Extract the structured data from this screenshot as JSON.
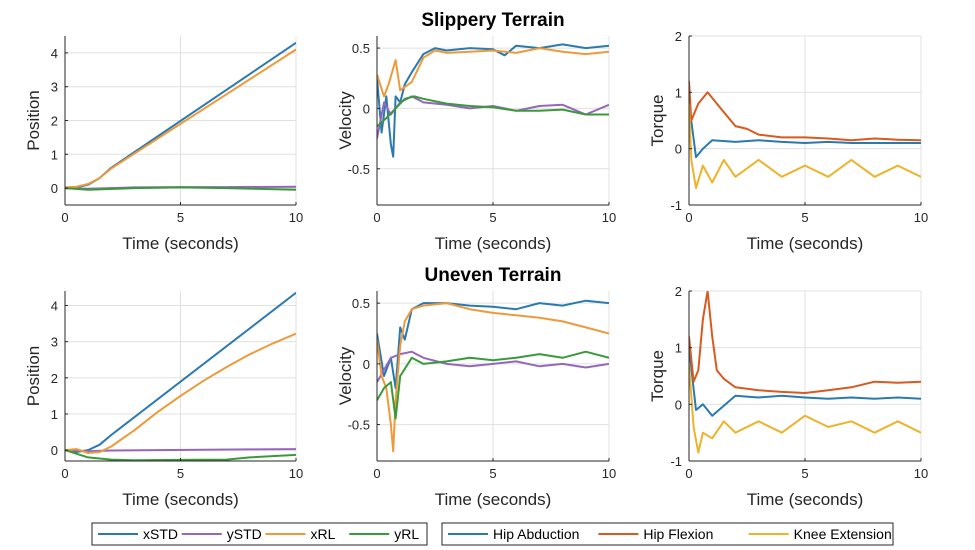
{
  "colors": {
    "blue": "#2A7AB0",
    "purple": "#9467BD",
    "orange": "#EE9A3A",
    "green": "#3A9A3A",
    "red": "#D85A1E",
    "gold": "#EDB32A",
    "axis": "#262626",
    "grid": "#E0E0E0"
  },
  "row_titles": [
    "Slippery Terrain",
    "Uneven Terrain"
  ],
  "legends": [
    {
      "entries": [
        {
          "label": "xSTD",
          "color": "#2A7AB0"
        },
        {
          "label": "ySTD",
          "color": "#9467BD"
        },
        {
          "label": "xRL",
          "color": "#EE9A3A"
        },
        {
          "label": "yRL",
          "color": "#3A9A3A"
        }
      ]
    },
    {
      "entries": [
        {
          "label": "Hip Abduction",
          "color": "#2A7AB0"
        },
        {
          "label": "Hip Flexion",
          "color": "#D85A1E"
        },
        {
          "label": "Knee Extension",
          "color": "#EDB32A"
        }
      ]
    }
  ],
  "chart_data": [
    {
      "type": "line",
      "xlabel": "Time (seconds)",
      "ylabel": "Position",
      "xlim": [
        0,
        10
      ],
      "ylim": [
        -0.5,
        4.5
      ],
      "xticks": [
        0,
        5,
        10
      ],
      "xtick_labels": [
        "0",
        "5",
        "10"
      ],
      "yticks": [
        0,
        1,
        2,
        3,
        4
      ],
      "ytick_labels": [
        "0",
        "1",
        "2",
        "3",
        "4"
      ],
      "grid": true,
      "series": [
        {
          "name": "xSTD",
          "color": "#2A7AB0",
          "x": [
            0,
            0.5,
            1,
            1.5,
            2,
            10
          ],
          "y": [
            0,
            0.02,
            0.1,
            0.3,
            0.6,
            4.3
          ]
        },
        {
          "name": "ySTD",
          "color": "#9467BD",
          "x": [
            0,
            1,
            3,
            5,
            7,
            10
          ],
          "y": [
            0,
            -0.02,
            0.02,
            0.03,
            0.03,
            0.04
          ]
        },
        {
          "name": "xRL",
          "color": "#EE9A3A",
          "x": [
            0,
            0.5,
            1,
            1.5,
            2,
            10
          ],
          "y": [
            0.02,
            0.04,
            0.12,
            0.3,
            0.58,
            4.1
          ]
        },
        {
          "name": "yRL",
          "color": "#3A9A3A",
          "x": [
            0,
            1,
            3,
            5,
            7,
            10
          ],
          "y": [
            0,
            -0.05,
            0,
            0.02,
            0,
            -0.05
          ]
        }
      ]
    },
    {
      "type": "line",
      "xlabel": "Time (seconds)",
      "ylabel": "Velocity",
      "xlim": [
        0,
        10
      ],
      "ylim": [
        -0.8,
        0.6
      ],
      "xticks": [
        0,
        5,
        10
      ],
      "xtick_labels": [
        "0",
        "5",
        "10"
      ],
      "yticks": [
        -0.5,
        0,
        0.5
      ],
      "ytick_labels": [
        "-0.5",
        "0",
        "0.5"
      ],
      "grid": true,
      "series": [
        {
          "name": "xSTD",
          "color": "#2A7AB0",
          "x": [
            0,
            0.2,
            0.4,
            0.6,
            0.7,
            0.8,
            1,
            1.2,
            1.5,
            2,
            2.5,
            3,
            4,
            5,
            5.5,
            6,
            7,
            8,
            9,
            10
          ],
          "y": [
            0.25,
            -0.2,
            0.1,
            -0.3,
            -0.4,
            0.1,
            0.05,
            0.2,
            0.3,
            0.45,
            0.5,
            0.48,
            0.5,
            0.49,
            0.44,
            0.52,
            0.5,
            0.53,
            0.5,
            0.52
          ]
        },
        {
          "name": "ySTD",
          "color": "#9467BD",
          "x": [
            0,
            0.3,
            0.6,
            1,
            1.5,
            2,
            3,
            4,
            5,
            6,
            7,
            8,
            9,
            10
          ],
          "y": [
            -0.25,
            0.05,
            -0.05,
            0.05,
            0.1,
            0.05,
            0.03,
            0,
            0.02,
            -0.02,
            0.02,
            0.03,
            -0.05,
            0.03
          ]
        },
        {
          "name": "xRL",
          "color": "#EE9A3A",
          "x": [
            0,
            0.3,
            0.5,
            0.8,
            1,
            1.5,
            2,
            2.5,
            3,
            4,
            5,
            6,
            7,
            8,
            9,
            10
          ],
          "y": [
            0.28,
            0.1,
            0.2,
            0.4,
            0.15,
            0.22,
            0.42,
            0.48,
            0.46,
            0.47,
            0.48,
            0.46,
            0.5,
            0.47,
            0.45,
            0.47
          ]
        },
        {
          "name": "yRL",
          "color": "#3A9A3A",
          "x": [
            0,
            0.4,
            0.8,
            1.2,
            1.6,
            2,
            3,
            4,
            5,
            6,
            7,
            8,
            9,
            10
          ],
          "y": [
            -0.15,
            -0.08,
            0,
            0.08,
            0.1,
            0.08,
            0.04,
            0.02,
            0.01,
            -0.02,
            -0.02,
            -0.01,
            -0.05,
            -0.05
          ]
        }
      ]
    },
    {
      "type": "line",
      "xlabel": "Time (seconds)",
      "ylabel": "Torque",
      "xlim": [
        0,
        10
      ],
      "ylim": [
        -1,
        2
      ],
      "xticks": [
        0,
        5,
        10
      ],
      "xtick_labels": [
        "0",
        "5",
        "10"
      ],
      "yticks": [
        -1,
        0,
        1,
        2
      ],
      "ytick_labels": [
        "-1",
        "0",
        "1",
        "2"
      ],
      "grid": true,
      "series": [
        {
          "name": "Hip Abduction",
          "color": "#2A7AB0",
          "x": [
            0,
            0.3,
            0.6,
            1,
            2,
            3,
            4,
            5,
            6,
            7,
            8,
            9,
            10
          ],
          "y": [
            0.8,
            -0.15,
            0,
            0.15,
            0.12,
            0.15,
            0.12,
            0.1,
            0.12,
            0.1,
            0.1,
            0.1,
            0.1
          ]
        },
        {
          "name": "Hip Flexion",
          "color": "#D85A1E",
          "x": [
            0,
            0.1,
            0.4,
            0.8,
            1.2,
            1.6,
            2,
            2.5,
            3,
            4,
            5,
            6,
            7,
            8,
            9,
            10
          ],
          "y": [
            1.2,
            0.5,
            0.8,
            1.0,
            0.8,
            0.6,
            0.4,
            0.35,
            0.25,
            0.2,
            0.2,
            0.18,
            0.15,
            0.18,
            0.16,
            0.15
          ]
        },
        {
          "name": "Knee Extension",
          "color": "#EDB32A",
          "x": [
            0,
            0.1,
            0.3,
            0.6,
            1,
            1.5,
            2,
            3,
            4,
            5,
            6,
            7,
            8,
            9,
            10
          ],
          "y": [
            0.8,
            -0.2,
            -0.7,
            -0.3,
            -0.6,
            -0.2,
            -0.5,
            -0.2,
            -0.5,
            -0.3,
            -0.5,
            -0.2,
            -0.5,
            -0.3,
            -0.5
          ]
        }
      ]
    },
    {
      "type": "line",
      "xlabel": "Time (seconds)",
      "ylabel": "Position",
      "xlim": [
        0,
        10
      ],
      "ylim": [
        -0.3,
        4.4
      ],
      "xticks": [
        0,
        5,
        10
      ],
      "xtick_labels": [
        "0",
        "5",
        "10"
      ],
      "yticks": [
        0,
        1,
        2,
        3,
        4
      ],
      "ytick_labels": [
        "0",
        "1",
        "2",
        "3",
        "4"
      ],
      "grid": true,
      "series": [
        {
          "name": "xSTD",
          "color": "#2A7AB0",
          "x": [
            0,
            0.5,
            1,
            1.5,
            2,
            10
          ],
          "y": [
            0,
            -0.05,
            0,
            0.15,
            0.42,
            4.35
          ]
        },
        {
          "name": "ySTD",
          "color": "#9467BD",
          "x": [
            0,
            1,
            2,
            4,
            6,
            8,
            10
          ],
          "y": [
            0,
            -0.03,
            -0.01,
            0,
            0.01,
            0.02,
            0.03
          ]
        },
        {
          "name": "xRL",
          "color": "#EE9A3A",
          "x": [
            0,
            0.5,
            1,
            1.5,
            2,
            3,
            4,
            5,
            6,
            7,
            8,
            9,
            10
          ],
          "y": [
            0,
            0.03,
            -0.08,
            -0.05,
            0.1,
            0.55,
            1.05,
            1.5,
            1.92,
            2.3,
            2.65,
            2.95,
            3.22
          ]
        },
        {
          "name": "yRL",
          "color": "#3A9A3A",
          "x": [
            0,
            1,
            2,
            3,
            5,
            7,
            8,
            10
          ],
          "y": [
            0,
            -0.2,
            -0.26,
            -0.28,
            -0.27,
            -0.26,
            -0.2,
            -0.13
          ]
        }
      ]
    },
    {
      "type": "line",
      "xlabel": "Time (seconds)",
      "ylabel": "Velocity",
      "xlim": [
        0,
        10
      ],
      "ylim": [
        -0.8,
        0.6
      ],
      "xticks": [
        0,
        5,
        10
      ],
      "xtick_labels": [
        "0",
        "5",
        "10"
      ],
      "yticks": [
        -0.5,
        0,
        0.5
      ],
      "ytick_labels": [
        "-0.5",
        "0",
        "0.5"
      ],
      "grid": true,
      "series": [
        {
          "name": "xSTD",
          "color": "#2A7AB0",
          "x": [
            0,
            0.3,
            0.6,
            0.8,
            1,
            1.2,
            1.5,
            2,
            3,
            4,
            5,
            6,
            7,
            8,
            9,
            10
          ],
          "y": [
            0.25,
            -0.1,
            0.05,
            -0.2,
            0.3,
            0.2,
            0.45,
            0.5,
            0.5,
            0.48,
            0.47,
            0.45,
            0.5,
            0.48,
            0.52,
            0.5
          ]
        },
        {
          "name": "ySTD",
          "color": "#9467BD",
          "x": [
            0,
            0.3,
            0.6,
            1,
            1.5,
            2,
            3,
            4,
            5,
            6,
            7,
            8,
            9,
            10
          ],
          "y": [
            -0.15,
            -0.05,
            0.05,
            0.08,
            0.1,
            0.05,
            0,
            -0.02,
            0,
            0.02,
            -0.02,
            0,
            -0.03,
            0
          ]
        },
        {
          "name": "xRL",
          "color": "#EE9A3A",
          "x": [
            0,
            0.2,
            0.4,
            0.6,
            0.7,
            0.8,
            1,
            1.2,
            1.5,
            2,
            3,
            4,
            5,
            6,
            7,
            8,
            9,
            10
          ],
          "y": [
            0.2,
            -0.1,
            -0.2,
            -0.5,
            -0.72,
            -0.3,
            0.15,
            0.35,
            0.45,
            0.48,
            0.5,
            0.45,
            0.42,
            0.4,
            0.38,
            0.35,
            0.3,
            0.25
          ]
        },
        {
          "name": "yRL",
          "color": "#3A9A3A",
          "x": [
            0,
            0.3,
            0.6,
            0.8,
            1,
            1.5,
            2,
            3,
            4,
            5,
            6,
            7,
            8,
            9,
            10
          ],
          "y": [
            -0.3,
            -0.2,
            -0.15,
            -0.45,
            -0.1,
            0.05,
            0,
            0.02,
            0.05,
            0.03,
            0.05,
            0.08,
            0.05,
            0.1,
            0.05
          ]
        }
      ]
    },
    {
      "type": "line",
      "xlabel": "Time (seconds)",
      "ylabel": "Torque",
      "xlim": [
        0,
        10
      ],
      "ylim": [
        -1,
        2
      ],
      "xticks": [
        0,
        5,
        10
      ],
      "xtick_labels": [
        "0",
        "5",
        "10"
      ],
      "yticks": [
        -1,
        0,
        1,
        2
      ],
      "ytick_labels": [
        "-1",
        "0",
        "1",
        "2"
      ],
      "grid": true,
      "series": [
        {
          "name": "Hip Abduction",
          "color": "#2A7AB0",
          "x": [
            0,
            0.3,
            0.6,
            1,
            2,
            3,
            4,
            5,
            6,
            7,
            8,
            9,
            10
          ],
          "y": [
            1.0,
            -0.1,
            0,
            -0.2,
            0.15,
            0.12,
            0.15,
            0.12,
            0.1,
            0.12,
            0.1,
            0.12,
            0.1
          ]
        },
        {
          "name": "Hip Flexion",
          "color": "#D85A1E",
          "x": [
            0,
            0.2,
            0.4,
            0.6,
            0.8,
            1,
            1.2,
            1.5,
            2,
            3,
            4,
            5,
            6,
            7,
            8,
            9,
            10
          ],
          "y": [
            1.2,
            0.4,
            0.6,
            1.5,
            2.0,
            1.2,
            0.6,
            0.45,
            0.3,
            0.25,
            0.22,
            0.2,
            0.25,
            0.3,
            0.4,
            0.38,
            0.4
          ]
        },
        {
          "name": "Knee Extension",
          "color": "#EDB32A",
          "x": [
            0,
            0.2,
            0.4,
            0.6,
            1,
            1.5,
            2,
            3,
            4,
            5,
            6,
            7,
            8,
            9,
            10
          ],
          "y": [
            0.7,
            -0.4,
            -0.85,
            -0.5,
            -0.6,
            -0.3,
            -0.5,
            -0.3,
            -0.5,
            -0.2,
            -0.4,
            -0.3,
            -0.5,
            -0.3,
            -0.5
          ]
        }
      ]
    }
  ]
}
